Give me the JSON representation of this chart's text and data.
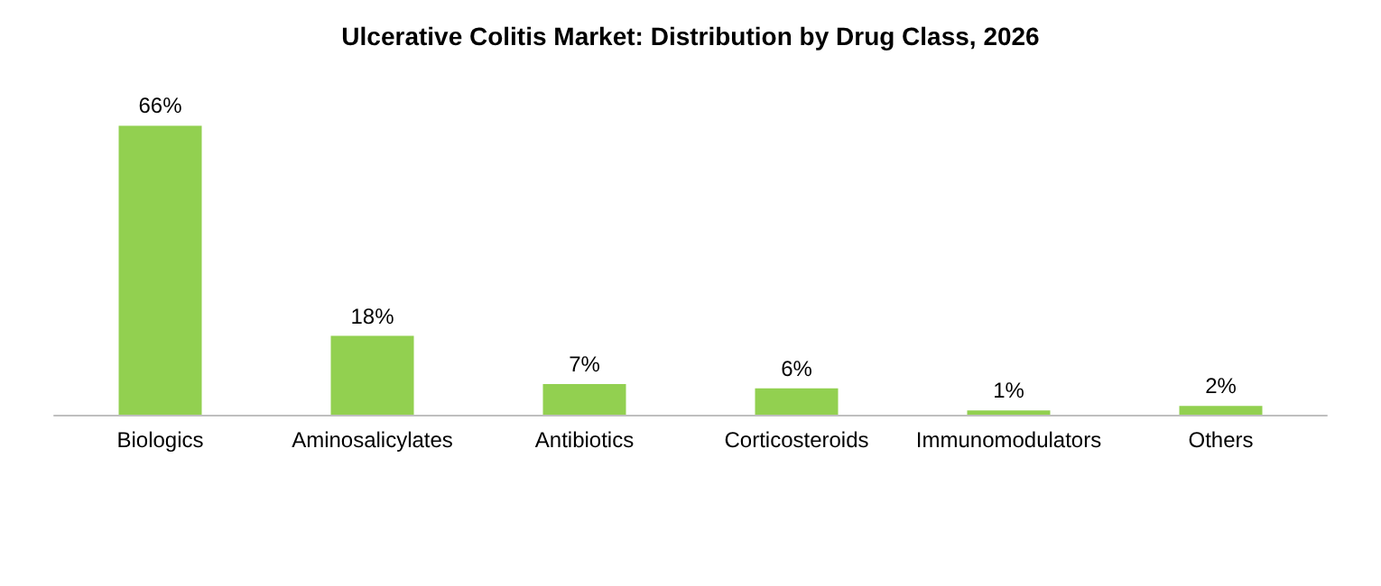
{
  "chart_data": {
    "type": "bar",
    "title": "Ulcerative Colitis Market: Distribution by Drug Class, 2026",
    "categories": [
      "Biologics",
      "Aminosalicylates",
      "Antibiotics",
      "Corticosteroids",
      "Immunomodulators",
      "Others"
    ],
    "values": [
      66,
      18,
      7,
      6,
      1,
      2
    ],
    "value_labels": [
      "66%",
      "18%",
      "7%",
      "6%",
      "1%",
      "2%"
    ],
    "color": "#92d050"
  }
}
